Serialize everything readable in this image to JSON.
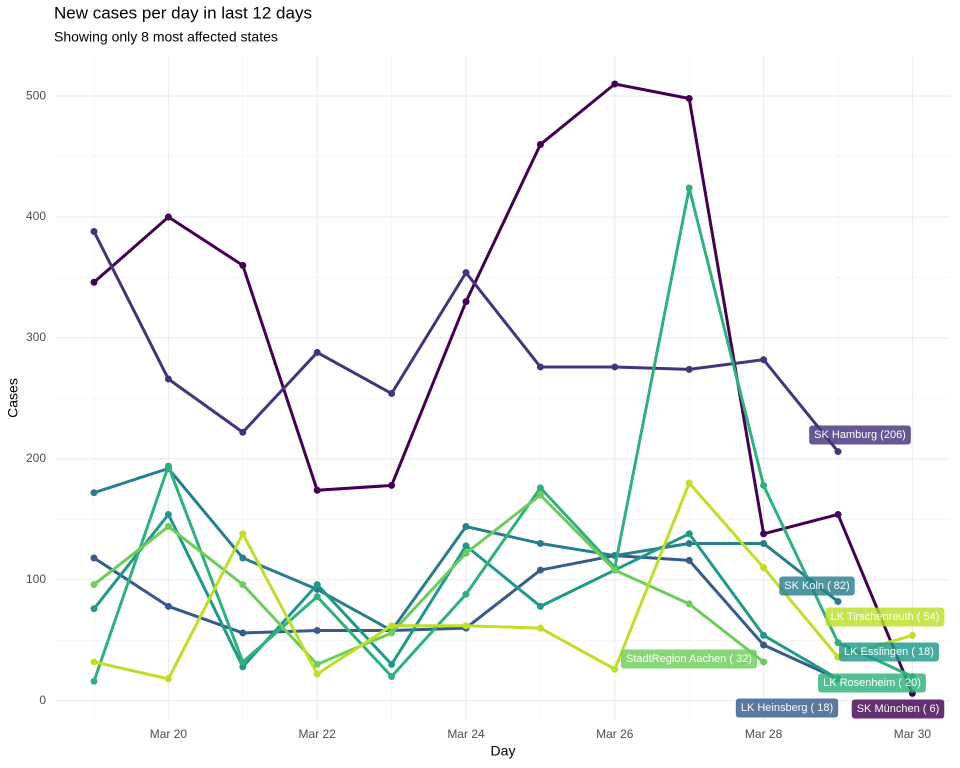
{
  "chart_data": {
    "type": "line",
    "title": "New cases per day in last 12 days",
    "subtitle": "Showing only 8 most affected states",
    "x_label": "Day",
    "y_label": "Cases",
    "categories": [
      null,
      "Mar 20",
      null,
      "Mar 22",
      null,
      "Mar 24",
      null,
      "Mar 26",
      null,
      "Mar 28",
      null,
      "Mar 30"
    ],
    "ylim": [
      -16,
      534
    ],
    "yticks": [
      0,
      100,
      200,
      300,
      400,
      500
    ],
    "grid": true,
    "series": [
      {
        "name": "SK München",
        "label": "SK München (  6)",
        "color": "#440154",
        "values": [
          346,
          400,
          360,
          174,
          178,
          330,
          460,
          510,
          498,
          138,
          154,
          6
        ]
      },
      {
        "name": "SK Hamburg",
        "label": "SK Hamburg (206)",
        "color": "#46337e",
        "values": [
          388,
          266,
          222,
          288,
          254,
          354,
          276,
          276,
          274,
          282,
          206,
          null
        ]
      },
      {
        "name": "LK Heinsberg",
        "label": "LK Heinsberg ( 18)",
        "color": "#365c8d",
        "values": [
          118,
          78,
          56,
          58,
          58,
          60,
          108,
          120,
          116,
          46,
          18,
          null
        ]
      },
      {
        "name": "SK Koln",
        "label": "SK Koln ( 82)",
        "color": "#277f8e",
        "values": [
          172,
          192,
          118,
          92,
          58,
          144,
          130,
          120,
          130,
          130,
          82,
          null
        ]
      },
      {
        "name": "LK Esslingen",
        "label": "LK Esslingen ( 18)",
        "color": "#1f9a8a",
        "values": [
          76,
          154,
          28,
          96,
          30,
          128,
          78,
          108,
          138,
          54,
          18,
          null
        ]
      },
      {
        "name": "LK Rosenheim",
        "label": "LK Rosenheim ( 20)",
        "color": "#2db27d",
        "values": [
          16,
          194,
          32,
          86,
          20,
          88,
          176,
          110,
          424,
          178,
          48,
          20
        ]
      },
      {
        "name": "StadtRegion Aachen",
        "label": "StadtRegion Aachen ( 32)",
        "color": "#6ccd5a",
        "values": [
          96,
          144,
          96,
          30,
          56,
          122,
          170,
          108,
          80,
          32,
          null,
          null
        ]
      },
      {
        "name": "LK Tirschenreuth",
        "label": "LK Tirschenreuth ( 54)",
        "color": "#bddf26",
        "values": [
          32,
          18,
          138,
          22,
          62,
          62,
          60,
          26,
          180,
          110,
          36,
          54
        ]
      }
    ]
  }
}
